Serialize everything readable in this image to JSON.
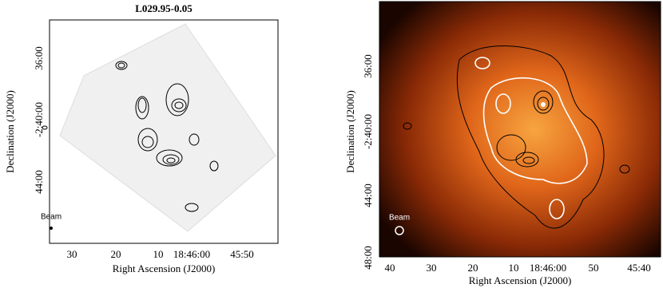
{
  "left_panel": {
    "title": "L029.95-0.05",
    "x_label": "Right Ascension (J2000)",
    "y_label": "Declination (J2000)",
    "x_ticks": [
      "30",
      "20",
      "10",
      "18:46:00",
      "45:50"
    ],
    "y_ticks": [
      "36:00",
      "-2:40:00",
      "44:00"
    ],
    "beam_label": "Beam"
  },
  "right_panel": {
    "x_label": "Right Ascension (J2000)",
    "y_label": "Declination (J2000)",
    "x_ticks": [
      "40",
      "30",
      "20",
      "10",
      "18:46:00",
      "50",
      "45:40"
    ],
    "y_ticks": [
      "36:00",
      "-2:40:00",
      "44:00",
      "48:00"
    ],
    "beam_label": "Beam"
  }
}
